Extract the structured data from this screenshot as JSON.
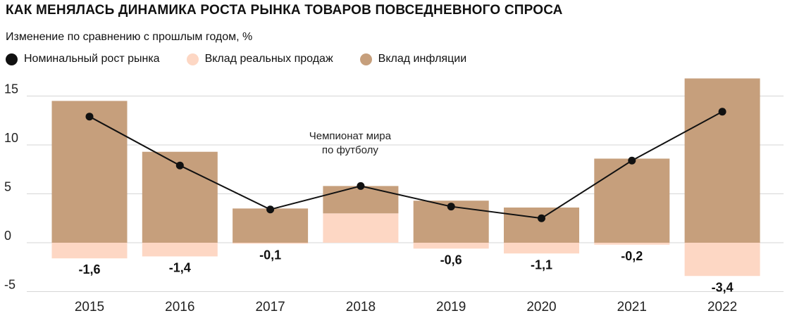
{
  "chart_data": {
    "type": "bar",
    "title": "КАК МЕНЯЛАСЬ ДИНАМИКА РОСТА РЫНКА ТОВАРОВ ПОВСЕДНЕВНОГО СПРОСА",
    "subtitle": "Изменение по сравнению с прошлым годом, %",
    "categories": [
      "2015",
      "2016",
      "2017",
      "2018",
      "2019",
      "2020",
      "2021",
      "2022"
    ],
    "series": [
      {
        "name": "Номинальный рост рынка",
        "kind": "line",
        "color": "#111111",
        "values": [
          12.9,
          7.9,
          3.4,
          5.8,
          3.7,
          2.5,
          8.4,
          13.4
        ]
      },
      {
        "name": "Вклад реальных продаж",
        "kind": "bar",
        "color": "#fdd7c4",
        "values": [
          -1.6,
          -1.4,
          -0.1,
          3.0,
          -0.6,
          -1.1,
          -0.2,
          -3.4
        ]
      },
      {
        "name": "Вклад инфляции",
        "kind": "bar",
        "color": "#c69f7c",
        "values": [
          14.5,
          9.3,
          3.5,
          2.8,
          4.3,
          3.6,
          8.6,
          16.8
        ]
      }
    ],
    "data_labels": [
      "-1,6",
      "-1,4",
      "-0,1",
      "",
      "-0,6",
      "-1,1",
      "-0,2",
      "-3,4"
    ],
    "y_ticks": [
      "15",
      "10",
      "5",
      "0",
      "-5"
    ],
    "y_tick_values": [
      15,
      10,
      5,
      0,
      -5
    ],
    "ylim": [
      -5,
      17
    ],
    "grid": true,
    "legend_position": "top-left",
    "annotation": {
      "category": "2018",
      "lines": [
        "Чемпионат мира",
        "по футболу"
      ]
    }
  }
}
